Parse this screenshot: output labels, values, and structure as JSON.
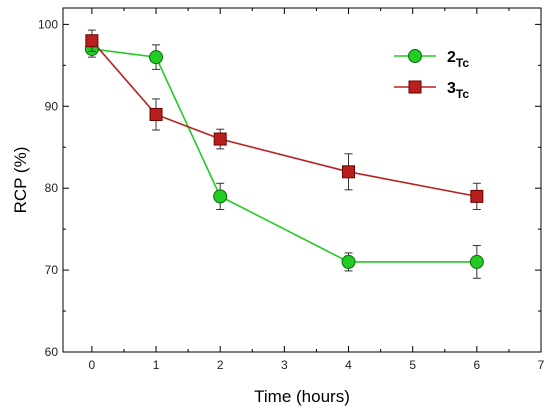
{
  "chart_data": {
    "type": "line",
    "xlabel": "Time (hours)",
    "ylabel": "RCP (%)",
    "xlim": [
      -0.45,
      7
    ],
    "ylim": [
      60,
      102
    ],
    "xticks": [
      0,
      1,
      2,
      3,
      4,
      5,
      6,
      7
    ],
    "yticks": [
      60,
      70,
      80,
      90,
      100
    ],
    "grid": false,
    "legend_position": "top-right",
    "series": [
      {
        "name": "2",
        "subscript": "Tc",
        "color": "#22cc22",
        "marker": "circle",
        "x": [
          0,
          1,
          2,
          4,
          6
        ],
        "y": [
          97,
          96,
          79,
          71,
          71
        ],
        "error": [
          1.0,
          1.5,
          1.6,
          1.1,
          2.0
        ]
      },
      {
        "name": "3",
        "subscript": "Tc",
        "color": "#b82020",
        "marker": "square",
        "x": [
          0,
          1,
          2,
          4,
          6
        ],
        "y": [
          98,
          89,
          86,
          82,
          79
        ],
        "error": [
          1.3,
          1.9,
          1.2,
          2.2,
          1.6
        ]
      }
    ]
  }
}
